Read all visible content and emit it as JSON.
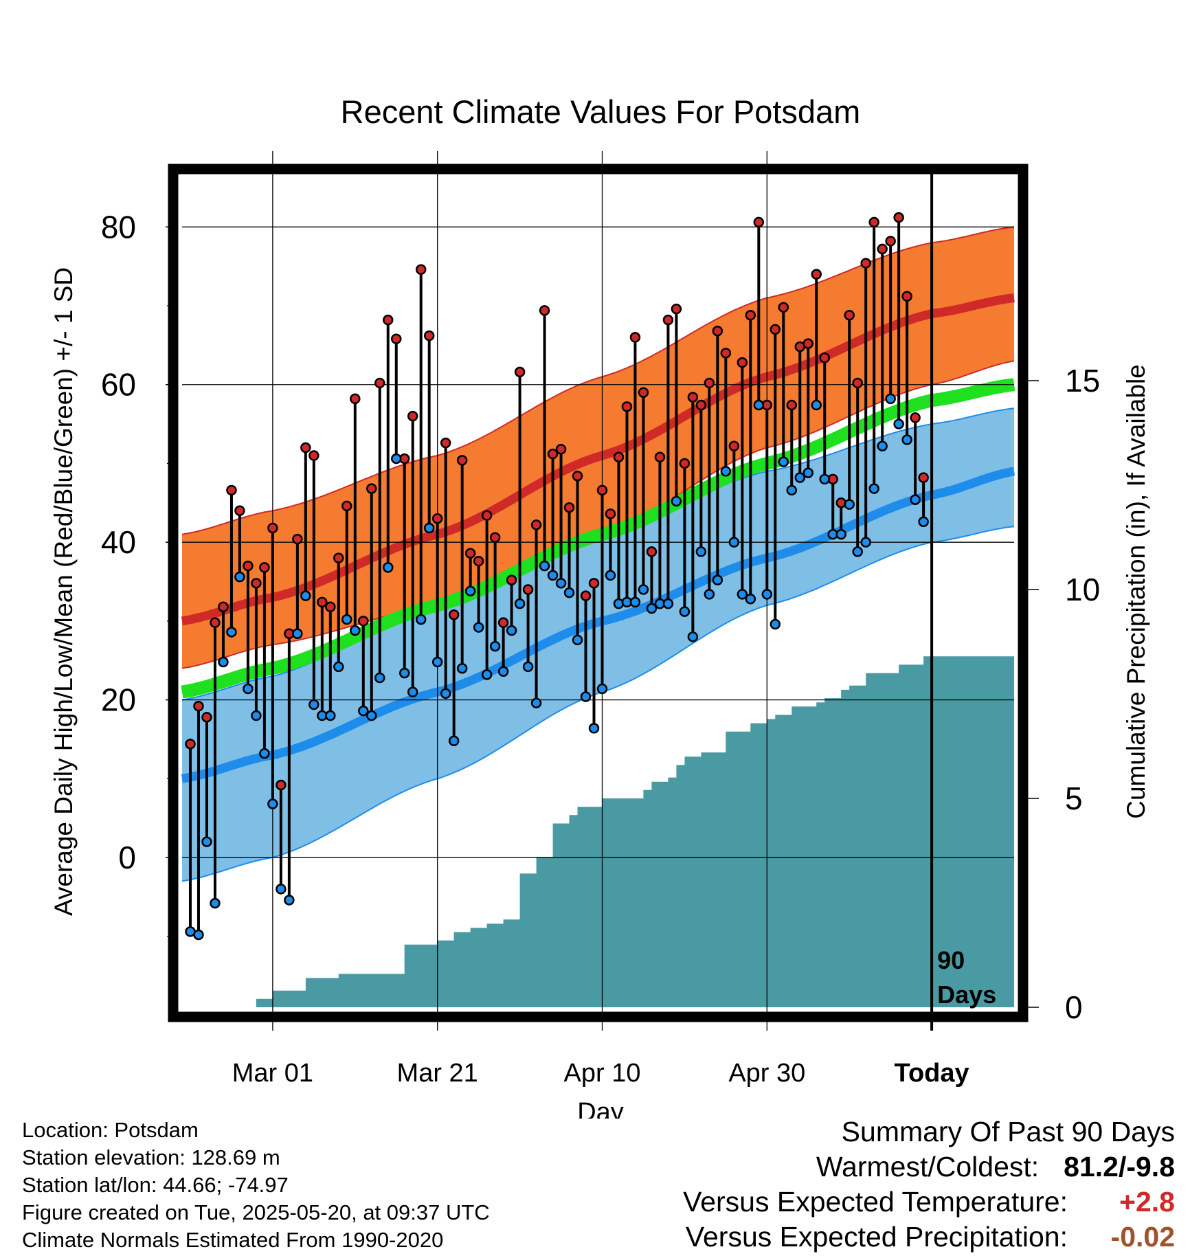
{
  "chart_data": {
    "type": "line",
    "title": "Recent Climate Values For Potsdam",
    "xlabel": "Day",
    "ylabel_left": "Average Daily High/Low/Mean (Red/Blue/Green) +/- 1 SD",
    "ylabel_right": "Cumulative Precipitation (in), If Available",
    "ylim_left": [
      -19,
      87
    ],
    "ylim_right": [
      0,
      20
    ],
    "left_ticks": [
      0,
      20,
      40,
      60,
      80
    ],
    "right_ticks": [
      0,
      5,
      10,
      15
    ],
    "x_tick_labels": [
      "Mar 01",
      "Mar 21",
      "Apr 10",
      "Apr 30",
      "Today"
    ],
    "x_tick_days": [
      0,
      20,
      40,
      60,
      80
    ],
    "xlim_days": [
      -11,
      90
    ],
    "today_marker_label": [
      "90",
      "Days"
    ],
    "colors": {
      "high_band": "#f47b30",
      "high_mean": "#d02a28",
      "low_band": "#7fbfe6",
      "low_mean": "#1d8ceb",
      "mean_band": "#1fe01f",
      "overlap": "#a21818",
      "precip": "#4a9aa3",
      "high_point": "#d02a28",
      "low_point": "#1d8ceb"
    },
    "normals": {
      "days": [
        -11,
        0,
        20,
        40,
        60,
        80,
        90
      ],
      "high_mean": [
        30,
        33,
        41,
        51,
        61,
        69,
        71
      ],
      "high_upper": [
        41,
        44,
        51,
        61,
        71,
        78,
        80
      ],
      "high_lower": [
        24,
        27,
        32,
        41,
        52,
        60,
        63
      ],
      "low_mean": [
        10,
        13,
        21,
        30,
        38,
        46,
        49
      ],
      "low_upper": [
        20,
        23,
        32,
        41,
        49,
        55,
        57
      ],
      "low_lower": [
        -3,
        0,
        10,
        21,
        32,
        40,
        42
      ],
      "mean_mean": [
        21,
        24,
        32,
        41,
        50,
        58,
        60
      ]
    },
    "series": [
      {
        "name": "Daily High",
        "days": [
          -10,
          -9,
          -8,
          -7,
          -6,
          -5,
          -4,
          -3,
          -2,
          -1,
          0,
          1,
          2,
          3,
          4,
          5,
          6,
          7,
          8,
          9,
          10,
          11,
          12,
          13,
          14,
          15,
          16,
          17,
          18,
          19,
          20,
          21,
          22,
          23,
          24,
          25,
          26,
          27,
          28,
          29,
          30,
          31,
          32,
          33,
          34,
          35,
          36,
          37,
          38,
          39,
          40,
          41,
          42,
          43,
          44,
          45,
          46,
          47,
          48,
          49,
          50,
          51,
          52,
          53,
          54,
          55,
          56,
          57,
          58,
          59,
          60,
          61,
          62,
          63,
          64,
          65,
          66,
          67,
          68,
          69,
          70,
          71,
          72,
          73,
          74,
          75,
          76,
          77,
          78,
          79
        ],
        "values": [
          14.4,
          19.2,
          17.8,
          29.8,
          31.8,
          46.6,
          44.0,
          37.0,
          34.8,
          36.8,
          41.8,
          9.2,
          28.4,
          40.4,
          52.0,
          51.0,
          32.4,
          31.8,
          38.0,
          44.6,
          58.2,
          30.0,
          46.8,
          60.2,
          68.2,
          65.8,
          50.6,
          56.0,
          74.6,
          66.2,
          43.0,
          52.6,
          30.8,
          50.4,
          38.6,
          37.6,
          43.4,
          40.6,
          29.8,
          35.2,
          61.6,
          34.0,
          42.2,
          69.4,
          51.2,
          51.8,
          44.4,
          48.4,
          33.2,
          34.8,
          46.6,
          43.6,
          50.8,
          57.2,
          66.0,
          59.0,
          38.8,
          50.8,
          68.2,
          69.6,
          50.0,
          58.4,
          57.4,
          60.2,
          66.8,
          64.0,
          52.2,
          62.8,
          68.8,
          80.6,
          57.4,
          67.0,
          69.8,
          57.4,
          64.8,
          65.2,
          74.0,
          63.4,
          48.0,
          45.0,
          68.8,
          60.2,
          75.4,
          80.6,
          77.2,
          78.2,
          81.2,
          71.2,
          55.8,
          48.2
        ]
      },
      {
        "name": "Daily Low",
        "days": [
          -10,
          -9,
          -8,
          -7,
          -6,
          -5,
          -4,
          -3,
          -2,
          -1,
          0,
          1,
          2,
          3,
          4,
          5,
          6,
          7,
          8,
          9,
          10,
          11,
          12,
          13,
          14,
          15,
          16,
          17,
          18,
          19,
          20,
          21,
          22,
          23,
          24,
          25,
          26,
          27,
          28,
          29,
          30,
          31,
          32,
          33,
          34,
          35,
          36,
          37,
          38,
          39,
          40,
          41,
          42,
          43,
          44,
          45,
          46,
          47,
          48,
          49,
          50,
          51,
          52,
          53,
          54,
          55,
          56,
          57,
          58,
          59,
          60,
          61,
          62,
          63,
          64,
          65,
          66,
          67,
          68,
          69,
          70,
          71,
          72,
          73,
          74,
          75,
          76,
          77,
          78,
          79
        ],
        "values": [
          -9.4,
          -9.8,
          2.0,
          -5.8,
          24.8,
          28.6,
          35.6,
          21.4,
          18.0,
          13.2,
          6.8,
          -4.0,
          -5.4,
          28.4,
          33.2,
          19.4,
          18.0,
          18.0,
          24.2,
          30.2,
          28.8,
          18.6,
          18.0,
          22.8,
          36.8,
          50.6,
          23.4,
          21.0,
          30.2,
          41.8,
          24.8,
          20.8,
          14.8,
          24.0,
          33.8,
          29.2,
          23.2,
          26.8,
          23.6,
          28.8,
          32.2,
          24.2,
          19.6,
          37.0,
          35.8,
          34.8,
          33.6,
          27.6,
          20.4,
          16.4,
          21.4,
          35.8,
          32.2,
          32.4,
          32.4,
          34.0,
          31.6,
          32.2,
          32.2,
          45.2,
          31.2,
          28.0,
          38.8,
          33.4,
          35.2,
          49.0,
          40.0,
          33.4,
          32.8,
          57.4,
          33.4,
          29.6,
          50.2,
          46.6,
          48.2,
          48.8,
          57.4,
          48.0,
          41.0,
          41.0,
          44.8,
          38.8,
          40.0,
          46.8,
          52.2,
          58.2,
          55.0,
          53.0,
          45.4,
          42.6
        ]
      },
      {
        "name": "Cumulative Precipitation",
        "days": [
          -11,
          -3,
          -2,
          0,
          2,
          4,
          6,
          8,
          10,
          12,
          14,
          16,
          17,
          18,
          20,
          22,
          24,
          26,
          28,
          30,
          31,
          32,
          33,
          34,
          35,
          36,
          37,
          38,
          40,
          42,
          44,
          45,
          46,
          48,
          49,
          50,
          52,
          54,
          55,
          56,
          58,
          59,
          60,
          61,
          62,
          63,
          64,
          66,
          67,
          68,
          69,
          70,
          72,
          74,
          76,
          78,
          79,
          90
        ],
        "values": [
          0,
          0,
          0.2,
          0.4,
          0.4,
          0.7,
          0.7,
          0.8,
          0.8,
          0.8,
          0.8,
          1.5,
          1.5,
          1.5,
          1.6,
          1.8,
          1.9,
          2.0,
          2.1,
          3.2,
          3.2,
          3.6,
          3.6,
          4.4,
          4.4,
          4.6,
          4.8,
          4.8,
          5.0,
          5.0,
          5.0,
          5.2,
          5.4,
          5.5,
          5.8,
          6.0,
          6.1,
          6.1,
          6.6,
          6.6,
          6.8,
          6.8,
          6.9,
          7.0,
          7.0,
          7.2,
          7.2,
          7.3,
          7.4,
          7.4,
          7.6,
          7.7,
          8.0,
          8.0,
          8.2,
          8.2,
          8.4,
          8.4
        ]
      }
    ]
  },
  "info": {
    "location": "Location: Potsdam",
    "elevation": "Station elevation: 128.69 m",
    "latlon": "Station lat/lon: 44.66; -74.97",
    "created": "Figure created on Tue, 2025-05-20, at 09:37 UTC",
    "normals": "Climate Normals Estimated From 1990-2020"
  },
  "summary": {
    "title": "Summary Of Past 90 Days",
    "warm_cold_label": "Warmest/Coldest:",
    "warm_cold_value": "81.2/-9.8",
    "temp_label": "Versus Expected Temperature:",
    "temp_value": "+2.8",
    "temp_color": "#d02a28",
    "precip_label": "Versus Expected Precipitation:",
    "precip_value": "-0.02",
    "precip_color": "#a0522d"
  }
}
